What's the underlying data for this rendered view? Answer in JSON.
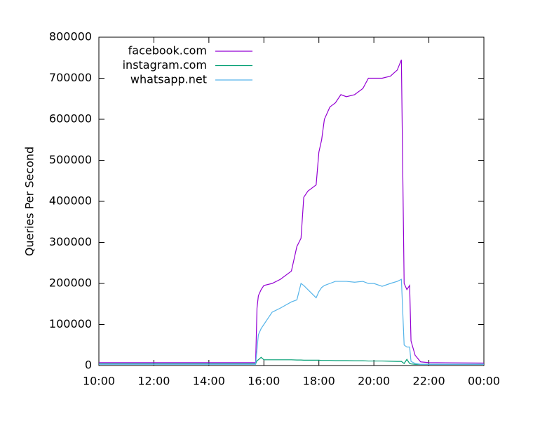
{
  "chart_data": {
    "type": "line",
    "y_label": "Queries Per Second",
    "x": [
      10,
      12,
      14,
      15.7,
      15.75,
      15.8,
      15.9,
      16.0,
      16.3,
      16.6,
      17.0,
      17.2,
      17.35,
      17.45,
      17.6,
      17.9,
      18.0,
      18.1,
      18.2,
      18.4,
      18.6,
      18.8,
      19.0,
      19.3,
      19.6,
      19.8,
      20.0,
      20.3,
      20.6,
      20.85,
      21.0,
      21.1,
      21.2,
      21.3,
      21.35,
      21.5,
      21.7,
      22.0,
      24.0
    ],
    "series": [
      {
        "name": "facebook.com",
        "color": "#9400d3",
        "values": [
          7000,
          7000,
          7000,
          7000,
          140000,
          170000,
          185000,
          195000,
          200000,
          210000,
          230000,
          290000,
          310000,
          410000,
          425000,
          440000,
          520000,
          550000,
          600000,
          630000,
          640000,
          660000,
          655000,
          660000,
          675000,
          700000,
          700000,
          700000,
          705000,
          720000,
          745000,
          200000,
          185000,
          195000,
          60000,
          25000,
          9000,
          7000,
          6000
        ]
      },
      {
        "name": "instagram.com",
        "color": "#009e73",
        "values": [
          4000,
          4000,
          4000,
          4000,
          12000,
          14000,
          20000,
          14000,
          14000,
          14000,
          14000,
          13500,
          13500,
          13000,
          13000,
          13000,
          13000,
          12500,
          12500,
          12500,
          12000,
          12000,
          12000,
          11500,
          11500,
          11000,
          11000,
          11000,
          10500,
          10000,
          10000,
          5000,
          15000,
          5000,
          4000,
          3000,
          3000,
          3000,
          3000
        ]
      },
      {
        "name": "whatsapp.net",
        "color": "#56b4e9",
        "values": [
          3000,
          3000,
          3000,
          3000,
          40000,
          75000,
          90000,
          100000,
          130000,
          140000,
          155000,
          160000,
          200000,
          195000,
          185000,
          165000,
          180000,
          190000,
          195000,
          200000,
          205000,
          205000,
          205000,
          203000,
          205000,
          200000,
          200000,
          193000,
          200000,
          205000,
          210000,
          50000,
          45000,
          45000,
          10000,
          5000,
          3000,
          3000,
          3000
        ]
      }
    ],
    "xlim": [
      10,
      24
    ],
    "xticks": [
      {
        "value": 10,
        "label": "10:00"
      },
      {
        "value": 12,
        "label": "12:00"
      },
      {
        "value": 14,
        "label": "14:00"
      },
      {
        "value": 16,
        "label": "16:00"
      },
      {
        "value": 18,
        "label": "18:00"
      },
      {
        "value": 20,
        "label": "20:00"
      },
      {
        "value": 22,
        "label": "22:00"
      },
      {
        "value": 24,
        "label": "00:00"
      }
    ],
    "ylim": [
      0,
      800000
    ],
    "yticks": [
      0,
      100000,
      200000,
      300000,
      400000,
      500000,
      600000,
      700000,
      800000
    ],
    "legend": "top-left"
  }
}
